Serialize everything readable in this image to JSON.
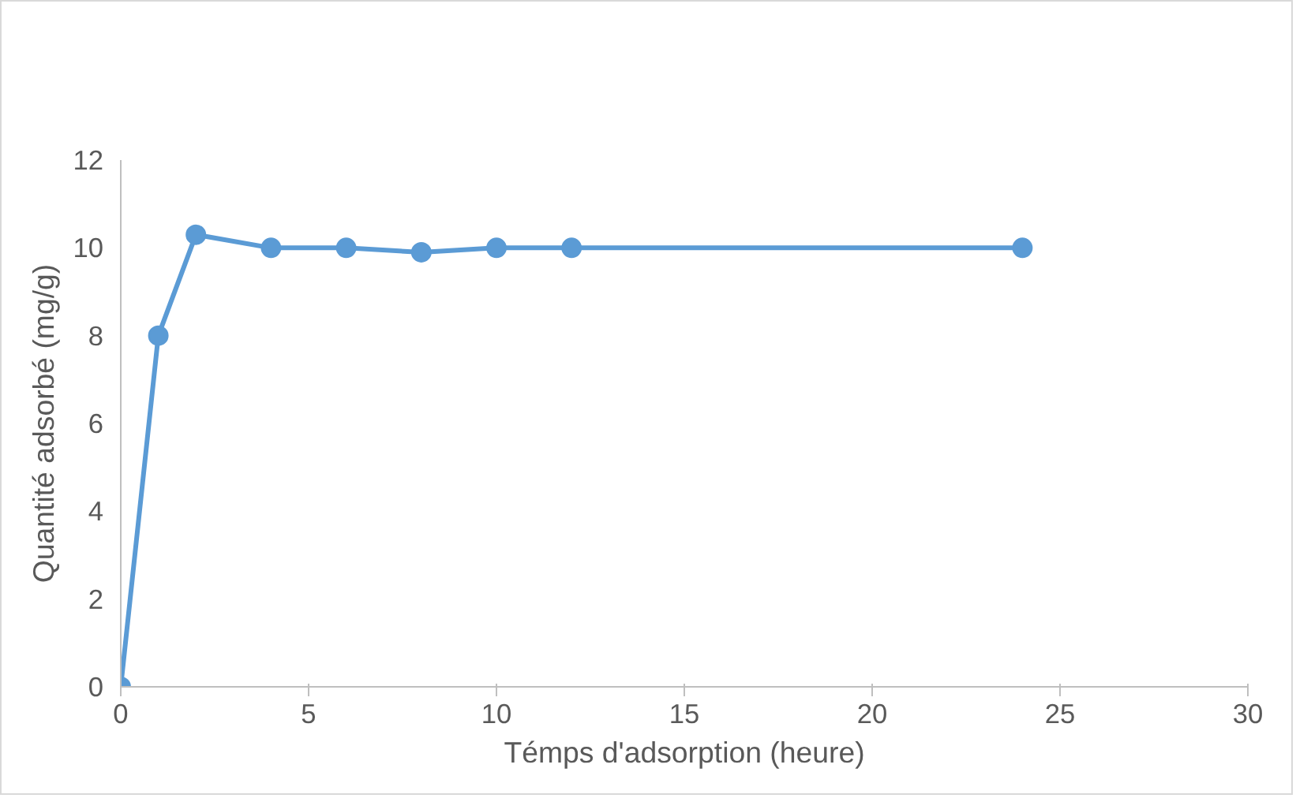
{
  "chart_data": {
    "type": "line",
    "xlabel": "Témps d'adsorption (heure)",
    "ylabel": "Quantité adsorbé (mg/g)",
    "x": [
      0,
      1,
      2,
      4,
      6,
      8,
      10,
      12,
      24
    ],
    "series": [
      {
        "color": "#5b9bd5",
        "values": [
          0,
          8,
          10.3,
          10,
          10,
          9.9,
          10,
          10,
          10
        ]
      }
    ],
    "xlim": [
      0,
      30
    ],
    "xticks": [
      0,
      5,
      10,
      15,
      20,
      25,
      30
    ],
    "ylim": [
      0,
      12
    ],
    "yticks": [
      0,
      2,
      4,
      6,
      8,
      10,
      12
    ],
    "grid": false,
    "marker": "circle",
    "line_style": "solid"
  }
}
